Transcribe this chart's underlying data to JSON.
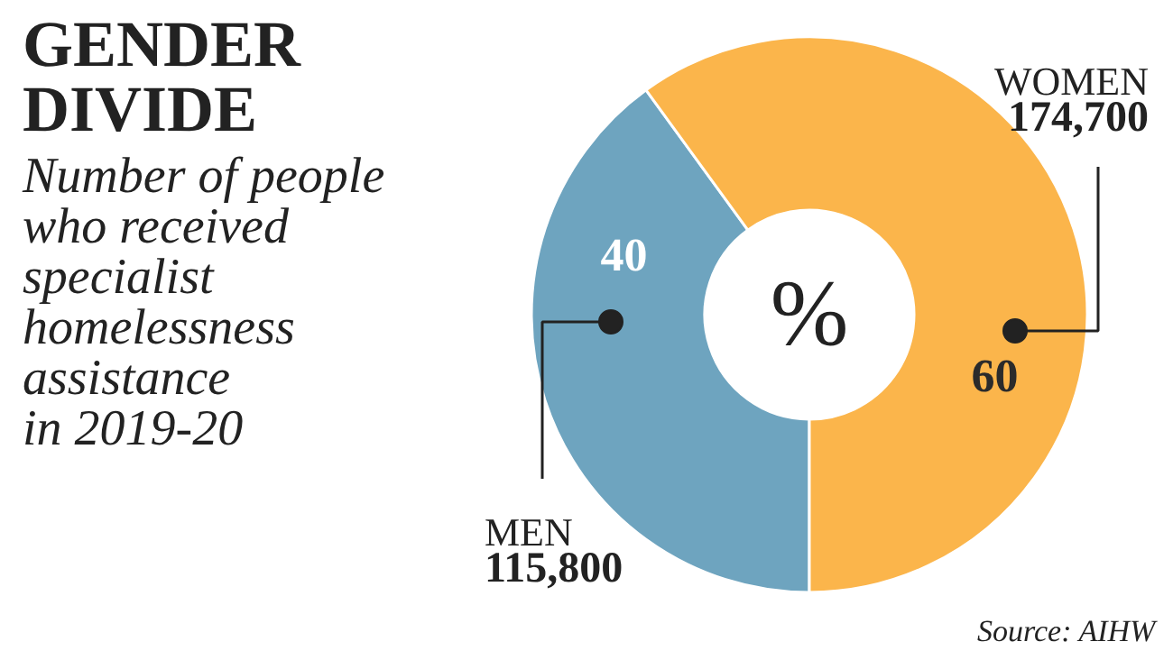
{
  "chart_data": {
    "type": "donut",
    "title": "GENDER\nDIVIDE",
    "subtitle": "Number of people\nwho received\nspecialist\nhomelessness\nassistance\nin 2019-20",
    "categories": [
      "MEN",
      "WOMEN"
    ],
    "values": [
      40,
      60
    ],
    "colors": [
      "#6ea4bf",
      "#fbb54b"
    ],
    "data_labels": true,
    "annotations": [
      "115,800",
      "174,700",
      "%",
      "Source: AIHW"
    ]
  }
}
